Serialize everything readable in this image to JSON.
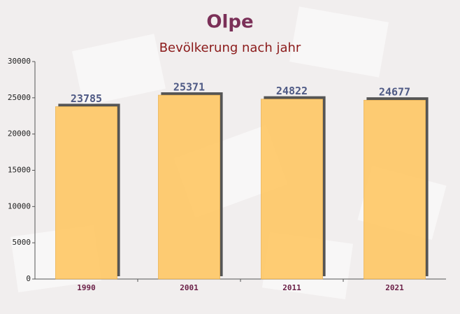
{
  "chart_data": {
    "type": "bar",
    "title": "Olpe",
    "subtitle": "Bevölkerung nach jahr",
    "categories": [
      "1990",
      "2001",
      "2011",
      "2021"
    ],
    "values": [
      23785,
      25371,
      24822,
      24677
    ],
    "color": "#ffc45c",
    "ylim": [
      0,
      30000
    ],
    "yticks": [
      0,
      5000,
      10000,
      15000,
      20000,
      25000,
      30000
    ],
    "grid": false
  }
}
